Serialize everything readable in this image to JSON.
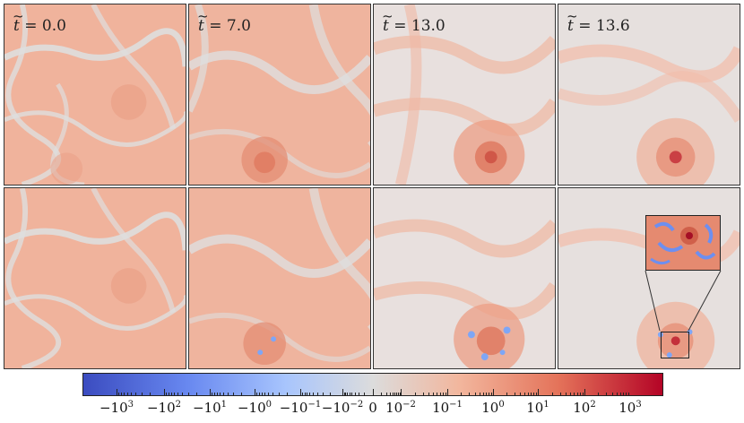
{
  "panels": {
    "labels": [
      "t = 0.0",
      "t = 7.0",
      "t = 13.0",
      "t = 13.6"
    ],
    "columns": [
      {
        "t_symbol": "t",
        "eq": "= 0.0"
      },
      {
        "t_symbol": "t",
        "eq": "= 7.0"
      },
      {
        "t_symbol": "t",
        "eq": "= 13.0"
      },
      {
        "t_symbol": "t",
        "eq": "= 13.6"
      }
    ]
  },
  "colorbar": {
    "colors": [
      "#3b4cc0",
      "#6888f0",
      "#a8c5fd",
      "#dcdcdc",
      "#f2b69d",
      "#e4735a",
      "#b40426"
    ],
    "labels": [
      {
        "base": "−10",
        "exp": "3"
      },
      {
        "base": "−10",
        "exp": "2"
      },
      {
        "base": "−10",
        "exp": "1"
      },
      {
        "base": "−10",
        "exp": "0"
      },
      {
        "base": "−10",
        "exp": "−1"
      },
      {
        "base": "−10",
        "exp": "−2"
      },
      {
        "base": "0",
        "exp": ""
      },
      {
        "base": "10",
        "exp": "−2"
      },
      {
        "base": "10",
        "exp": "−1"
      },
      {
        "base": "10",
        "exp": "0"
      },
      {
        "base": "10",
        "exp": "1"
      },
      {
        "base": "10",
        "exp": "2"
      },
      {
        "base": "10",
        "exp": "3"
      }
    ]
  }
}
